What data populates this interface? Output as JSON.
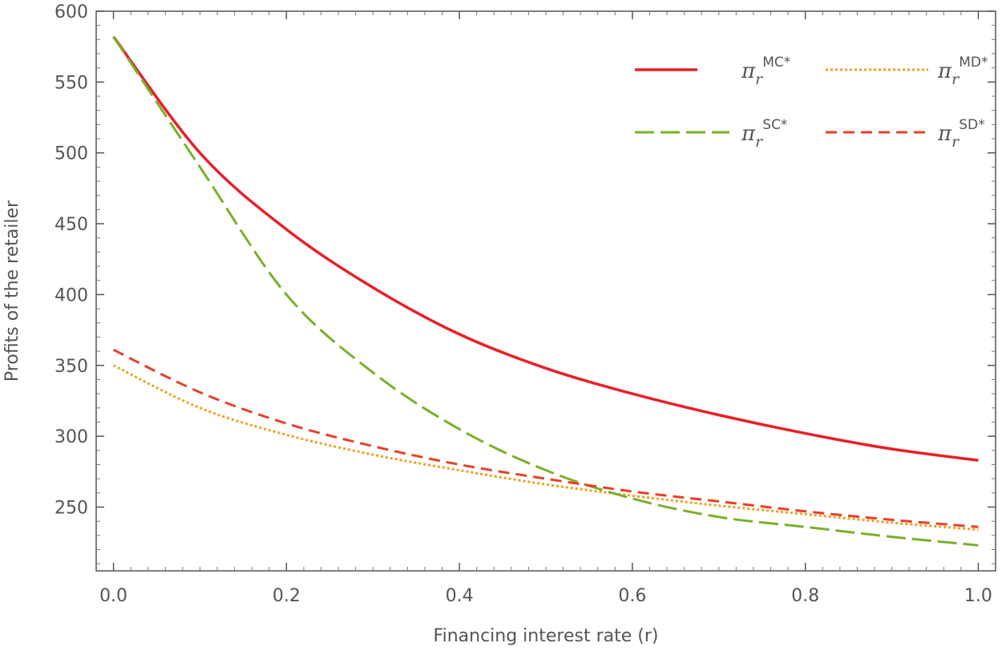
{
  "chart_data": {
    "type": "line",
    "xlabel": "Financing interest rate (r)",
    "ylabel": "Profits of the retailer",
    "xlim": [
      -0.02,
      1.02
    ],
    "ylim": [
      205,
      600
    ],
    "xticks": [
      0.0,
      0.2,
      0.4,
      0.6,
      0.8,
      1.0
    ],
    "xtick_labels": [
      "0.0",
      "0.2",
      "0.4",
      "0.6",
      "0.8",
      "1.0"
    ],
    "yticks": [
      250,
      300,
      350,
      400,
      450,
      500,
      550,
      600
    ],
    "ytick_labels": [
      "250",
      "300",
      "350",
      "400",
      "450",
      "500",
      "550",
      "600"
    ],
    "legend_position": "top-right",
    "x": [
      0.0,
      0.1,
      0.2,
      0.3,
      0.4,
      0.5,
      0.6,
      0.7,
      0.8,
      0.9,
      1.0
    ],
    "series": [
      {
        "name": "π_r^MC*",
        "legend_base": "π",
        "legend_sub": "r",
        "legend_sup": "MC*",
        "color": "#e8202a",
        "style": "solid",
        "values": [
          582,
          500,
          446,
          405,
          372,
          348,
          330,
          315,
          302,
          291,
          283
        ]
      },
      {
        "name": "π_r^MD*",
        "legend_base": "π",
        "legend_sub": "r",
        "legend_sup": "MD*",
        "color": "#f0a020",
        "style": "dotted",
        "values": [
          350,
          320,
          301,
          287,
          276,
          266,
          258,
          251,
          245,
          239,
          234
        ]
      },
      {
        "name": "π_r^SC*",
        "legend_base": "π",
        "legend_sub": "r",
        "legend_sup": "SC*",
        "color": "#7ab02a",
        "style": "longdash",
        "values": [
          582,
          490,
          400,
          345,
          305,
          276,
          256,
          243,
          236,
          229,
          223
        ]
      },
      {
        "name": "π_r^SD*",
        "legend_base": "π",
        "legend_sub": "r",
        "legend_sup": "SD*",
        "color": "#e8402a",
        "style": "dash",
        "values": [
          361,
          331,
          309,
          293,
          280,
          270,
          261,
          254,
          247,
          241,
          236
        ]
      }
    ]
  }
}
